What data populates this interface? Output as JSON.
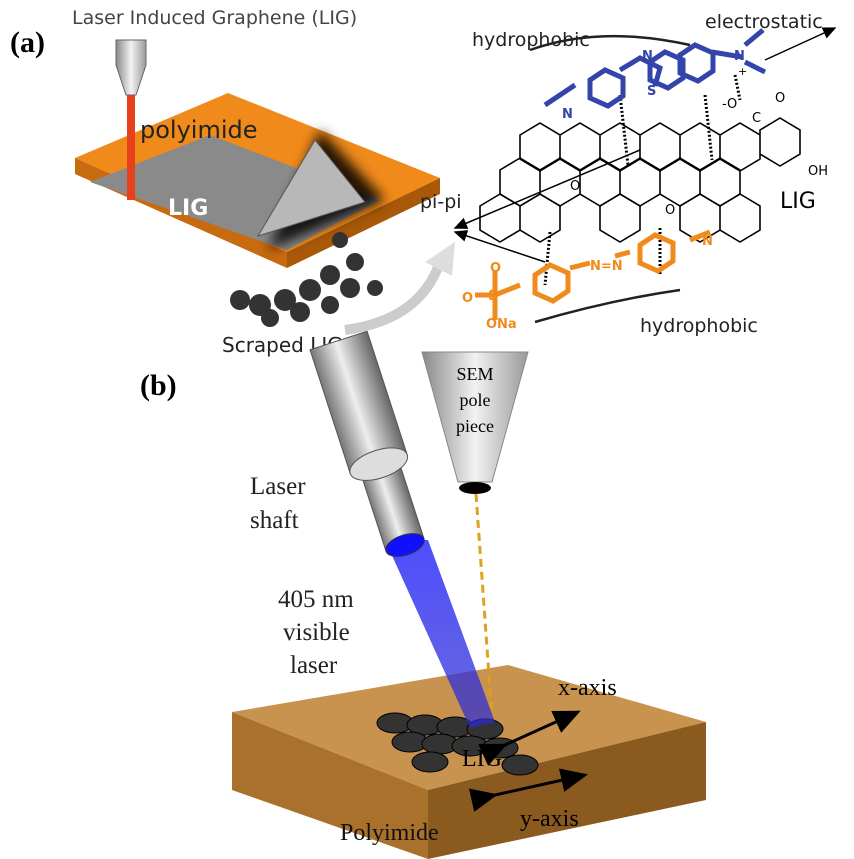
{
  "panel_a": {
    "label": "(a)",
    "title": "Laser Induced Graphene (LIG)",
    "substrate": "polyimide",
    "lig": "LIG",
    "scraped": "Scraped LIG",
    "pi_pi": "pi-pi",
    "hydrophobic_top": "hydrophobic",
    "electrostatic": "electrostatic",
    "lattice_label": "LIG",
    "hydroxyl": "OH",
    "hydrophobic_bottom": "hydrophobic",
    "blue_dye_atoms": [
      "N",
      "S",
      "N",
      "N",
      "+",
      "-O",
      "C",
      "O"
    ],
    "orange_dye_atoms": [
      "N",
      "N=N",
      "S",
      "O",
      "O",
      "ONa"
    ],
    "lattice_atoms": [
      "O",
      "O"
    ]
  },
  "panel_b": {
    "label": "(b)",
    "sem": [
      "SEM",
      "pole",
      "piece"
    ],
    "laser_shaft": [
      "Laser",
      "shaft"
    ],
    "laser": [
      "405 nm",
      "visible",
      "laser"
    ],
    "lig": "LIG",
    "x_axis": "x-axis",
    "y_axis": "y-axis",
    "substrate": "Polyimide"
  }
}
